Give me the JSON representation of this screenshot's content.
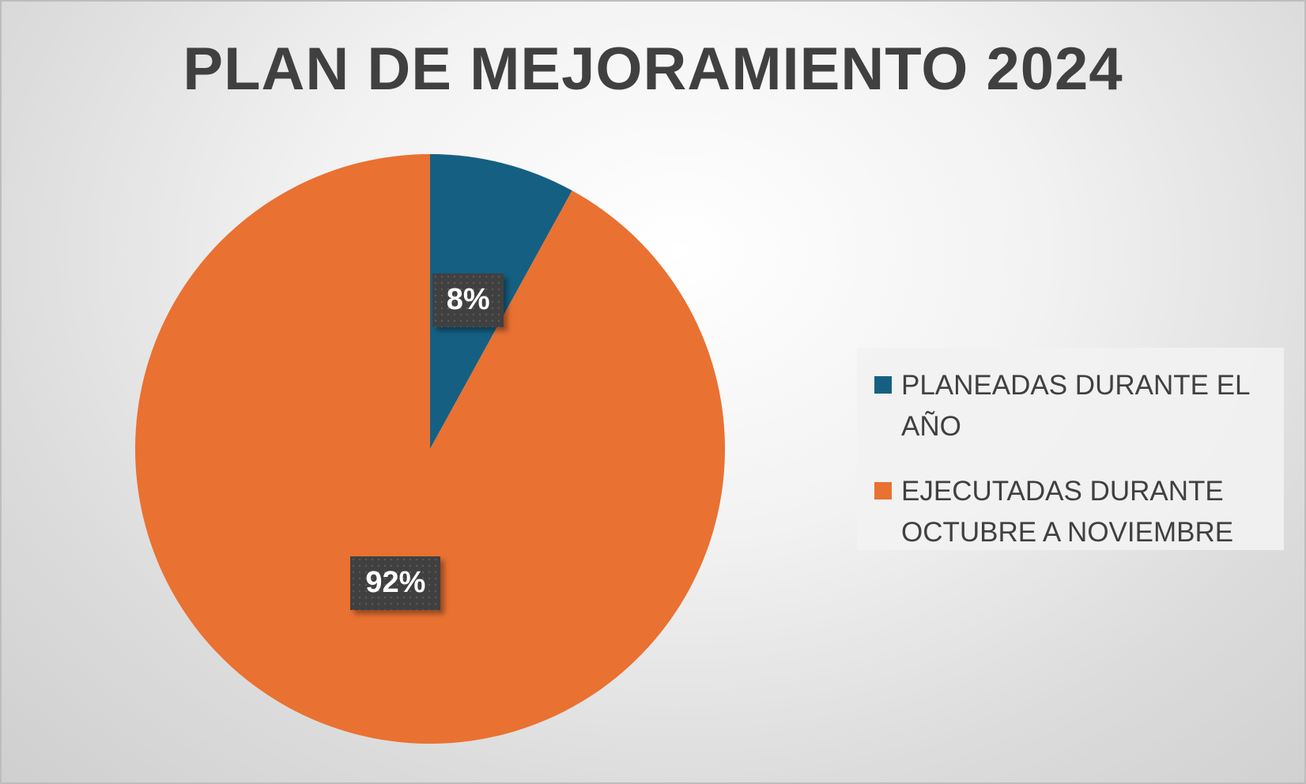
{
  "chart_data": {
    "type": "pie",
    "title": "PLAN DE MEJORAMIENTO 2024",
    "legend_position": "right",
    "slices": [
      {
        "name": "PLANEADAS DURANTE EL AÑO",
        "value": 8,
        "label": "8%",
        "color": "#156082"
      },
      {
        "name": "EJECUTADAS DURANTE OCTUBRE A NOVIEMBRE",
        "value": 92,
        "label": "92%",
        "color": "#E97132"
      }
    ]
  }
}
